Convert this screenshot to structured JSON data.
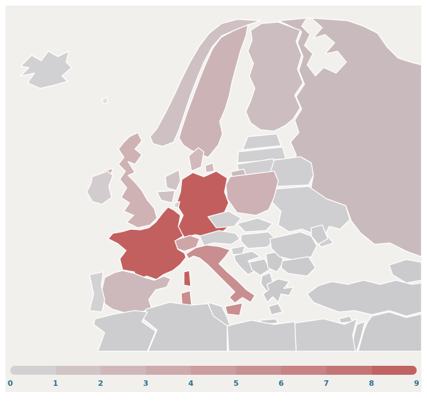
{
  "colors": {
    "page_background": "#ffffff",
    "sea": "#f1f0ec",
    "country_border": "#ffffff"
  },
  "map": {
    "description": "Choropleth map of Europe",
    "countries": [
      {
        "id": "iceland",
        "label": "Iceland",
        "value": 0,
        "fill": "#d1d1d3"
      },
      {
        "id": "faroe",
        "label": "Faroe Islands",
        "value": 0,
        "fill": "#e2e1de"
      },
      {
        "id": "norway",
        "label": "Norway",
        "value": 1,
        "fill": "#cfc1c3"
      },
      {
        "id": "sweden",
        "label": "Sweden",
        "value": 2,
        "fill": "#ccb3b6"
      },
      {
        "id": "finland",
        "label": "Finland",
        "value": 1,
        "fill": "#ccbec0"
      },
      {
        "id": "russia",
        "label": "Russia",
        "value": 1,
        "fill": "#c9bbbd"
      },
      {
        "id": "kaliningrad",
        "label": "Russia (Kaliningrad)",
        "value": 1,
        "fill": "#c9bbbd"
      },
      {
        "id": "estonia",
        "label": "Estonia",
        "value": 0,
        "fill": "#d0d0d2"
      },
      {
        "id": "latvia",
        "label": "Latvia",
        "value": 0,
        "fill": "#d0d0d2"
      },
      {
        "id": "lithuania",
        "label": "Lithuania",
        "value": 0,
        "fill": "#d0d0d2"
      },
      {
        "id": "belarus",
        "label": "Belarus",
        "value": 0,
        "fill": "#cfcfd1"
      },
      {
        "id": "ukraine",
        "label": "Ukraine",
        "value": 0,
        "fill": "#cfcfd1"
      },
      {
        "id": "moldova",
        "label": "Moldova",
        "value": 0,
        "fill": "#cdcdcf"
      },
      {
        "id": "poland",
        "label": "Poland",
        "value": 2,
        "fill": "#cdb1b4"
      },
      {
        "id": "germany",
        "label": "Germany",
        "value": 8,
        "fill": "#c25f5e"
      },
      {
        "id": "france",
        "label": "France",
        "value": 9,
        "fill": "#c26060"
      },
      {
        "id": "uk",
        "label": "United Kingdom",
        "value": 2,
        "fill": "#cfb2b4"
      },
      {
        "id": "ireland",
        "label": "Ireland",
        "value": 0,
        "fill": "#d2cccf"
      },
      {
        "id": "netherlands",
        "label": "Netherlands",
        "value": 1,
        "fill": "#d1c4c6"
      },
      {
        "id": "belgium",
        "label": "Belgium",
        "value": 1,
        "fill": "#cec2c4"
      },
      {
        "id": "luxembourg",
        "label": "Luxembourg",
        "value": 0,
        "fill": "#d0d0d2"
      },
      {
        "id": "denmark",
        "label": "Denmark",
        "value": 2,
        "fill": "#d2b9bb"
      },
      {
        "id": "spain",
        "label": "Spain",
        "value": 2,
        "fill": "#cdb9bb"
      },
      {
        "id": "portugal",
        "label": "Portugal",
        "value": 0,
        "fill": "#d2d2d4"
      },
      {
        "id": "switzerland",
        "label": "Switzerland",
        "value": 3,
        "fill": "#cfa6a8"
      },
      {
        "id": "austria",
        "label": "Austria",
        "value": 0,
        "fill": "#d0d0d2"
      },
      {
        "id": "czechia",
        "label": "Czechia",
        "value": 0,
        "fill": "#d2d2d4"
      },
      {
        "id": "slovakia",
        "label": "Slovakia",
        "value": 0,
        "fill": "#d0d0d2"
      },
      {
        "id": "hungary",
        "label": "Hungary",
        "value": 0,
        "fill": "#d0d0d2"
      },
      {
        "id": "italy",
        "label": "Italy",
        "value": 5,
        "fill": "#c98e8f"
      },
      {
        "id": "slovenia",
        "label": "Slovenia",
        "value": 0,
        "fill": "#cfcfd1"
      },
      {
        "id": "croatia",
        "label": "Croatia",
        "value": 0,
        "fill": "#cccccf"
      },
      {
        "id": "bosnia",
        "label": "Bosnia and Herzegovina",
        "value": 0,
        "fill": "#cbcbce"
      },
      {
        "id": "serbia",
        "label": "Serbia",
        "value": 0,
        "fill": "#cbcbce"
      },
      {
        "id": "albania",
        "label": "Albania",
        "value": 0,
        "fill": "#cbcbce"
      },
      {
        "id": "macedonia",
        "label": "North Macedonia",
        "value": 0,
        "fill": "#cbcbce"
      },
      {
        "id": "romania",
        "label": "Romania",
        "value": 0,
        "fill": "#cdcdd0"
      },
      {
        "id": "bulgaria",
        "label": "Bulgaria",
        "value": 0,
        "fill": "#cbcbce"
      },
      {
        "id": "greece",
        "label": "Greece",
        "value": 0,
        "fill": "#c9c9cc"
      },
      {
        "id": "turkey",
        "label": "Turkey",
        "value": 0,
        "fill": "#cbcbce"
      },
      {
        "id": "cyprus",
        "label": "Cyprus",
        "value": 0,
        "fill": "#cbcbce"
      },
      {
        "id": "caucasus",
        "label": "Caucasus",
        "value": 0,
        "fill": "#cbcbce"
      },
      {
        "id": "middle-east",
        "label": "Syria / Iraq",
        "value": 0,
        "fill": "#cbcbce"
      },
      {
        "id": "levant-coast",
        "label": "Levant coast",
        "value": 0,
        "fill": "#cbcbce"
      },
      {
        "id": "egypt",
        "label": "Egypt",
        "value": 0,
        "fill": "#cdcdcf"
      },
      {
        "id": "libya",
        "label": "Libya",
        "value": 0,
        "fill": "#cdcdcf"
      },
      {
        "id": "tunisia",
        "label": "Tunisia",
        "value": 0,
        "fill": "#cdcdcf"
      },
      {
        "id": "algeria",
        "label": "Algeria",
        "value": 0,
        "fill": "#cdcdcf"
      },
      {
        "id": "morocco",
        "label": "Morocco",
        "value": 0,
        "fill": "#cdcdcf"
      }
    ]
  },
  "legend": {
    "min": 0,
    "max": 9,
    "labels": [
      "0",
      "1",
      "2",
      "3",
      "4",
      "5",
      "6",
      "7",
      "8",
      "9"
    ],
    "label_color": "#2d7191",
    "segment_colors": [
      "#d1d1d3",
      "#d1c4c6",
      "#cfb7b9",
      "#cdaaac",
      "#cb9d9f",
      "#c99091",
      "#c78283",
      "#c47475",
      "#c16263"
    ]
  }
}
